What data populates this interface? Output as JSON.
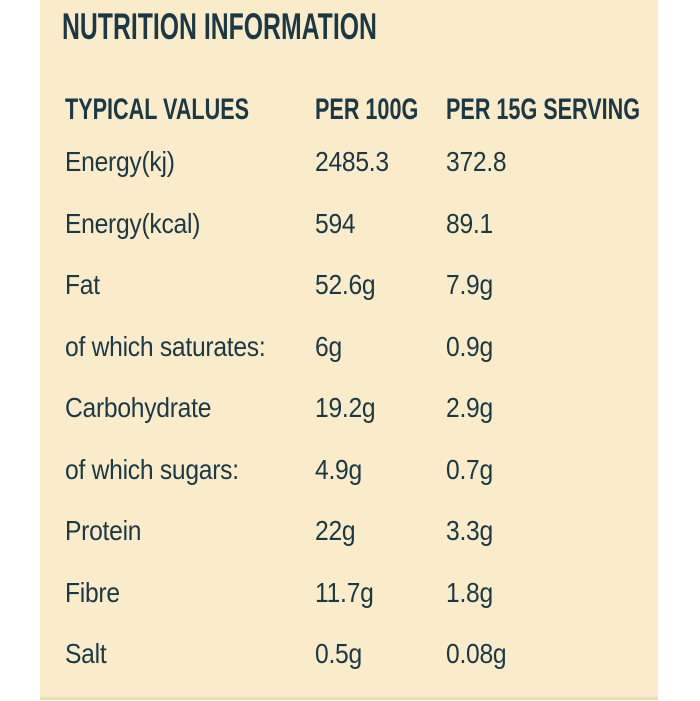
{
  "colors": {
    "page_background": "#FFFFFF",
    "panel_background": "#FAECCB",
    "text": "#1C3844",
    "bottom_edge": "#EDDCB8"
  },
  "title": "NUTRITION INFORMATION",
  "table": {
    "headers": [
      "TYPICAL VALUES",
      "PER 100G",
      "PER 15G SERVING"
    ],
    "rows": [
      {
        "label": "Energy(kj)",
        "per_100g": "2485.3",
        "per_serving": "372.8"
      },
      {
        "label": "Energy(kcal)",
        "per_100g": "594",
        "per_serving": "89.1"
      },
      {
        "label": "Fat",
        "per_100g": "52.6g",
        "per_serving": "7.9g"
      },
      {
        "label": "of which saturates:",
        "per_100g": "6g",
        "per_serving": "0.9g"
      },
      {
        "label": "Carbohydrate",
        "per_100g": "19.2g",
        "per_serving": "2.9g"
      },
      {
        "label": "of which sugars:",
        "per_100g": "4.9g",
        "per_serving": "0.7g"
      },
      {
        "label": "Protein",
        "per_100g": "22g",
        "per_serving": "3.3g"
      },
      {
        "label": "Fibre",
        "per_100g": "11.7g",
        "per_serving": "1.8g"
      },
      {
        "label": "Salt",
        "per_100g": "0.5g",
        "per_serving": "0.08g"
      }
    ]
  }
}
